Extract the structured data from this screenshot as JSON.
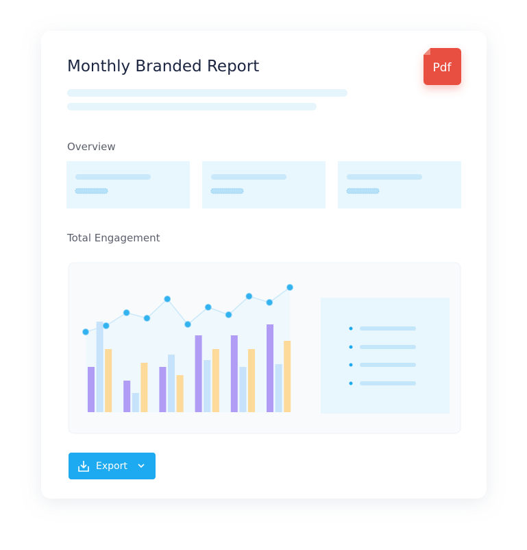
{
  "header": {
    "title": "Monthly Branded Report",
    "badge": "Pdf"
  },
  "sections": {
    "overview": "Overview",
    "engagement": "Total Engagement"
  },
  "engagement_chart": {
    "ylim": [
      0,
      100
    ],
    "line": [
      58.5,
      63,
      72.5,
      68.5,
      82.5,
      64,
      76.5,
      71,
      84.5,
      80,
      91
    ],
    "series": [
      {
        "color": "#b09cf5",
        "values": [
          33,
          23,
          33,
          56,
          56,
          64
        ]
      },
      {
        "color": "#c7e2fb",
        "values": [
          66,
          14,
          42,
          38,
          33,
          35
        ]
      },
      {
        "color": "#fdd99a",
        "values": [
          46,
          36,
          27,
          46,
          46,
          52
        ]
      }
    ]
  },
  "button": {
    "label": "Export"
  }
}
